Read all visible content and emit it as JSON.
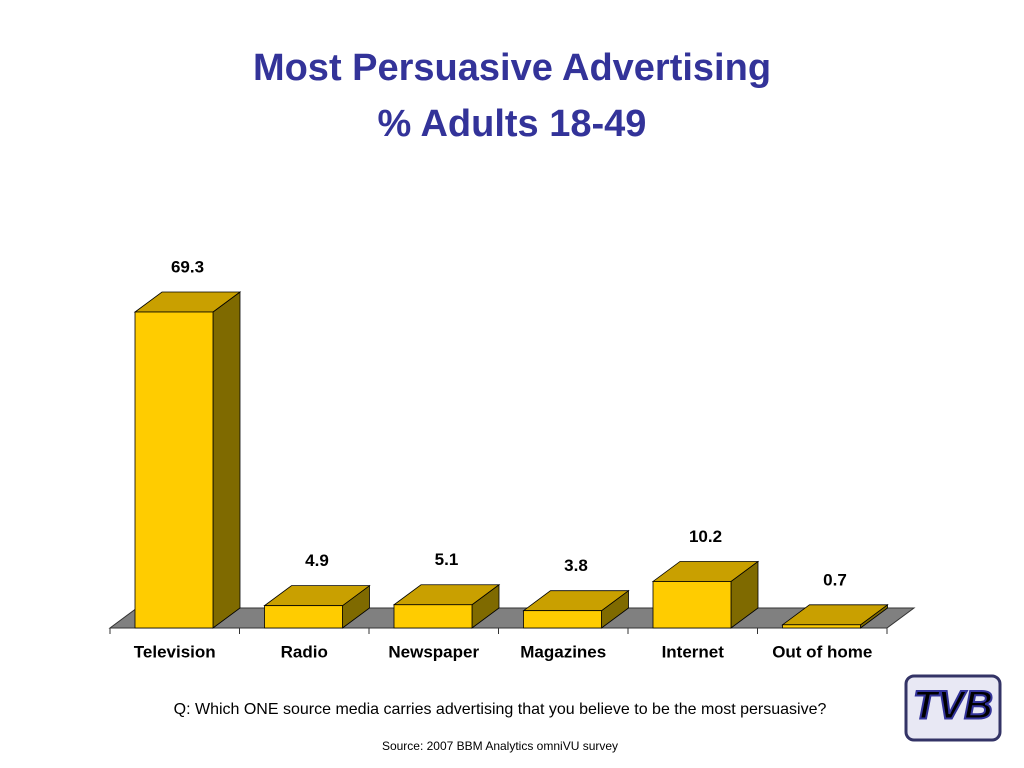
{
  "chart_data": {
    "type": "bar3d",
    "title": "Most Persuasive Advertising",
    "subtitle": "% Adults 18-49",
    "categories": [
      "Television",
      "Radio",
      "Newspaper",
      "Magazines",
      "Internet",
      "Out of home"
    ],
    "values": [
      69.3,
      4.9,
      5.1,
      3.8,
      10.2,
      0.7
    ],
    "color": "#ffcc00",
    "annotations": [
      "Q: Which ONE source media carries advertising that you believe to be the most persuasive?",
      "Source: 2007 BBM Analytics omniVU survey"
    ]
  },
  "logo": "TVB"
}
